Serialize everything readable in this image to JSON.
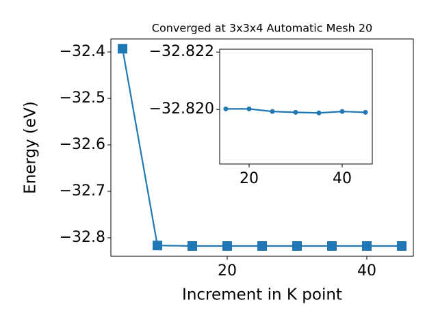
{
  "chart_data": [
    {
      "type": "line",
      "title": "Converged at 3x3x4 Automatic Mesh 20",
      "xlabel": "Increment in K point",
      "ylabel": "Energy (eV)",
      "x": [
        5,
        10,
        15,
        20,
        25,
        30,
        35,
        40,
        45
      ],
      "series": [
        {
          "color": "#1f77b4",
          "marker": "square",
          "values": [
            -32.393,
            -32.8165,
            -32.8176,
            -32.8176,
            -32.8176,
            -32.8176,
            -32.8176,
            -32.8176,
            -32.8176
          ]
        }
      ],
      "xlim": [
        3.33,
        46.67
      ],
      "ylim": [
        -32.8397,
        -32.372
      ],
      "xticks": [
        20,
        40
      ],
      "yticks": [
        {
          "value": -32.4,
          "label": "−32.4"
        },
        {
          "value": -32.5,
          "label": "−32.5"
        },
        {
          "value": -32.6,
          "label": "−32.6"
        },
        {
          "value": -32.7,
          "label": "−32.7"
        },
        {
          "value": -32.8,
          "label": "−32.8"
        }
      ]
    },
    {
      "type": "line",
      "x": [
        15,
        20,
        25,
        30,
        35,
        40,
        45
      ],
      "series": [
        {
          "color": "#1f77b4",
          "marker": "circle",
          "values": [
            -32.82002,
            -32.82002,
            -32.81993,
            -32.8199,
            -32.81988,
            -32.81993,
            -32.8199
          ]
        }
      ],
      "xlim": [
        13.68,
        46.47
      ],
      "ylim": [
        -32.8181,
        -32.8221
      ],
      "xticks": [
        20,
        40
      ],
      "yticks": [
        {
          "value": -32.822,
          "label": "−32.822"
        },
        {
          "value": -32.82,
          "label": "−32.820"
        }
      ]
    }
  ]
}
